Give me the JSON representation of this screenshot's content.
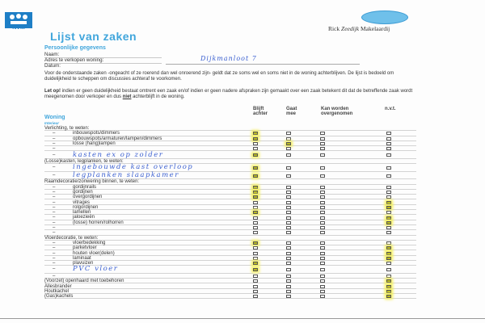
{
  "header": {
    "logo_text": "NVM",
    "title": "Lijst van zaken",
    "agency_prefix": "Rick ",
    "agency_italic": "Zeedijk",
    "agency_suffix": " Makelaardij"
  },
  "personal": {
    "section": "Persoonlijke gegevens",
    "name_label": "Naam:",
    "address_label": "Adres te verkopen woning:",
    "date_label": "Datum:",
    "address_value": "Dijkmanloot 7"
  },
  "intro": {
    "text": "Voor de onderstaande zaken -ongeacht of ze roerend dan wel onroerend zijn- geldt dat ze soms wel en soms niet in de woning achterblijven. De lijst is bedoeld om duidelijkheid te scheppen om discussies achteraf te voorkomen.",
    "warning_bold": "Let op!",
    "warning_text": " indien er geen duidelijkheid bestaat omtrent een zaak en/of indien er geen nadere afspraken zijn gemaakt over een zaak betekent dit dat de betreffende zaak wordt meegenomen door verkoper en dus ",
    "warning_underline": "niet",
    "warning_end": " achterblijft in de woning."
  },
  "columns": [
    "Blijft achter",
    "Gaat mee",
    "Kan worden overgenomen",
    "n.v.t."
  ],
  "section": {
    "title": "Woning",
    "subtitle": "Interieur"
  },
  "rows": [
    {
      "type": "header",
      "label": "Verlichting, te weten:"
    },
    {
      "type": "item",
      "label": "inbouwspots/dimmers",
      "checked": 0
    },
    {
      "type": "item",
      "label": "opbouwspots/armaturen/lampen/dimmers",
      "checked": 0
    },
    {
      "type": "item",
      "label": "losse (hang)lampen",
      "checked": 1
    },
    {
      "type": "item",
      "label": "",
      "checked": null
    },
    {
      "type": "handwritten",
      "label": "kasten ex op zolder",
      "checked": 0
    },
    {
      "type": "header",
      "label": "(Losse)kasten, legplanken, te weten:"
    },
    {
      "type": "handwritten",
      "label": "ingebouwde kast overloop",
      "checked": 0
    },
    {
      "type": "handwritten",
      "label": "legplanken slaapkamer",
      "checked": 0
    },
    {
      "type": "header",
      "label": "Raamdecoratie/zonwering binnen, te weten:"
    },
    {
      "type": "item",
      "label": "gordijnrails",
      "checked": 0
    },
    {
      "type": "item",
      "label": "gordijnen",
      "checked": 0
    },
    {
      "type": "item",
      "label": "overgordijnen",
      "checked": 0
    },
    {
      "type": "item",
      "label": "vitrages",
      "checked": 3
    },
    {
      "type": "item",
      "label": "rolgordijnen",
      "checked": 3
    },
    {
      "type": "item",
      "label": "lamellen",
      "checked": 0
    },
    {
      "type": "item",
      "label": "jaloezieën",
      "checked": 3
    },
    {
      "type": "item",
      "label": "(losse) horren/rolhorren",
      "checked": 3
    },
    {
      "type": "item",
      "label": "",
      "checked": null
    },
    {
      "type": "item",
      "label": "",
      "checked": null
    },
    {
      "type": "header",
      "label": "Vloerdecoratie, te weten:"
    },
    {
      "type": "item",
      "label": "vloerbedekking",
      "checked": 0
    },
    {
      "type": "item",
      "label": "parketvloer",
      "checked": 3
    },
    {
      "type": "item",
      "label": "houten vloer(delen)",
      "checked": 3
    },
    {
      "type": "item",
      "label": "laminaat",
      "checked": 3
    },
    {
      "type": "item",
      "label": "plavuizen",
      "checked": 0
    },
    {
      "type": "handwritten",
      "label": "PVC vloer",
      "checked": 0
    },
    {
      "type": "item",
      "label": "",
      "checked": null
    },
    {
      "type": "standalone",
      "label": "(Voorzet) openhaard met toebehoren",
      "checked": 3
    },
    {
      "type": "standalone",
      "label": "Allesbrander",
      "checked": 3
    },
    {
      "type": "standalone",
      "label": "Houtkachel",
      "checked": 3
    },
    {
      "type": "standalone",
      "label": "(Gas)kachels",
      "checked": 3
    }
  ],
  "colors": {
    "accent": "#41a6dc",
    "highlight": "#f4f060",
    "handwriting": "#3a5fd0"
  }
}
